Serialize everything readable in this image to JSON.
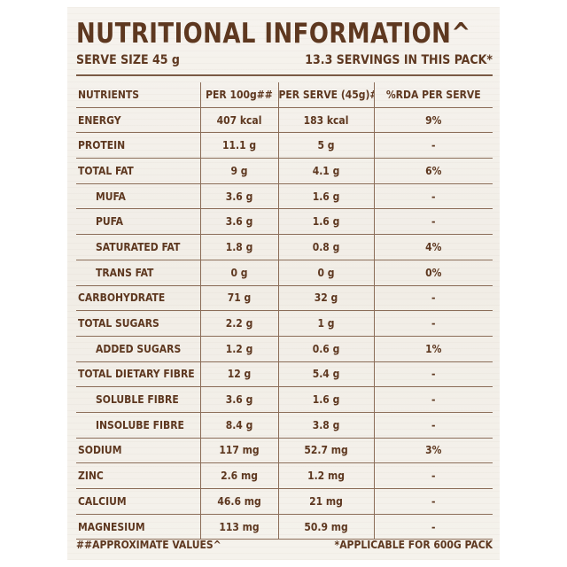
{
  "title": "NUTRITIONAL INFORMATION^",
  "serve_size": "SERVE SIZE 45 g",
  "servings": "13.3 SERVINGS IN THIS PACK*",
  "headers": [
    "NUTRIENTS",
    "PER 100g##",
    "PER SERVE (45g)#",
    "%RDA PER SERVE"
  ],
  "rows": [
    {
      "name": "ENERGY",
      "indent": false,
      "per100": "407 kcal",
      "perServe": "183 kcal",
      "rda": "9%"
    },
    {
      "name": "PROTEIN",
      "indent": false,
      "per100": "11.1 g",
      "perServe": "5 g",
      "rda": "-"
    },
    {
      "name": "TOTAL FAT",
      "indent": false,
      "per100": "9 g",
      "perServe": "4.1 g",
      "rda": "6%"
    },
    {
      "name": "MUFA",
      "indent": true,
      "per100": "3.6 g",
      "perServe": "1.6 g",
      "rda": "-"
    },
    {
      "name": "PUFA",
      "indent": true,
      "per100": "3.6 g",
      "perServe": "1.6 g",
      "rda": "-"
    },
    {
      "name": "SATURATED FAT",
      "indent": true,
      "per100": "1.8 g",
      "perServe": "0.8 g",
      "rda": "4%"
    },
    {
      "name": "TRANS FAT",
      "indent": true,
      "per100": "0 g",
      "perServe": "0 g",
      "rda": "0%"
    },
    {
      "name": "CARBOHYDRATE",
      "indent": false,
      "per100": "71 g",
      "perServe": "32 g",
      "rda": "-"
    },
    {
      "name": "TOTAL SUGARS",
      "indent": false,
      "per100": "2.2 g",
      "perServe": "1 g",
      "rda": "-"
    },
    {
      "name": "ADDED SUGARS",
      "indent": true,
      "per100": "1.2 g",
      "perServe": "0.6 g",
      "rda": "1%"
    },
    {
      "name": "TOTAL DIETARY FIBRE",
      "indent": false,
      "per100": "12 g",
      "perServe": "5.4 g",
      "rda": "-"
    },
    {
      "name": "SOLUBLE FIBRE",
      "indent": true,
      "per100": "3.6 g",
      "perServe": "1.6 g",
      "rda": "-"
    },
    {
      "name": "INSOLUBE FIBRE",
      "indent": true,
      "per100": "8.4 g",
      "perServe": "3.8 g",
      "rda": "-"
    },
    {
      "name": "SODIUM",
      "indent": false,
      "per100": "117 mg",
      "perServe": "52.7 mg",
      "rda": "3%"
    },
    {
      "name": "ZINC",
      "indent": false,
      "per100": "2.6 mg",
      "perServe": "1.2 mg",
      "rda": "-"
    },
    {
      "name": "CALCIUM",
      "indent": false,
      "per100": "46.6 mg",
      "perServe": "21 mg",
      "rda": "-"
    },
    {
      "name": "MAGNESIUM",
      "indent": false,
      "per100": "113 mg",
      "perServe": "50.9 mg",
      "rda": "-"
    }
  ],
  "footnote_left": "##APPROXIMATE VALUES^",
  "footnote_right": "*APPLICABLE FOR 600G PACK"
}
